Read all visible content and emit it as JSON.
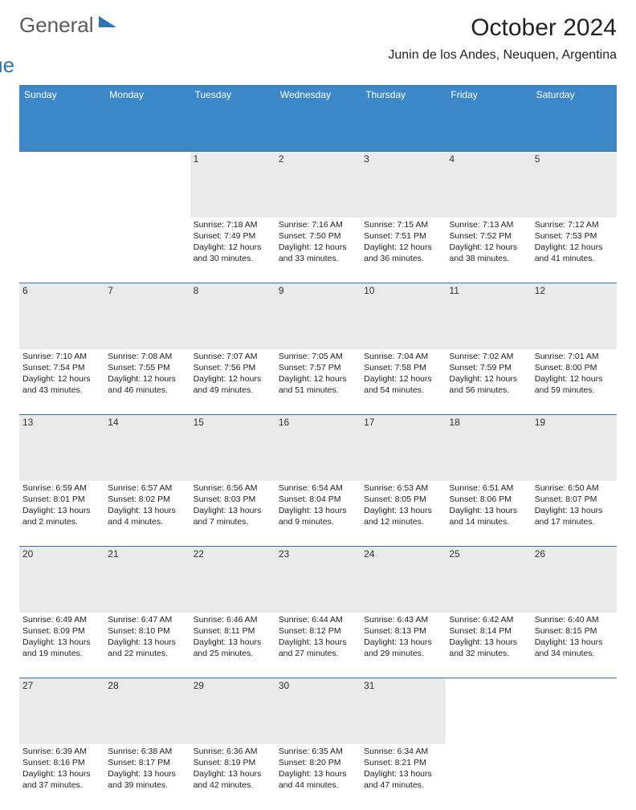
{
  "logo": {
    "general": "General",
    "blue": "Blue"
  },
  "title": "October 2024",
  "location": "Junin de los Andes, Neuquen, Argentina",
  "colors": {
    "accent": "#3c87c7",
    "border": "#2e74b5",
    "gray": "#eaeaea",
    "text": "#222222"
  },
  "day_headers": [
    "Sunday",
    "Monday",
    "Tuesday",
    "Wednesday",
    "Thursday",
    "Friday",
    "Saturday"
  ],
  "weeks": [
    [
      {
        "n": "",
        "sr": "",
        "ss": "",
        "dl": ""
      },
      {
        "n": "",
        "sr": "",
        "ss": "",
        "dl": ""
      },
      {
        "n": "1",
        "sr": "Sunrise: 7:18 AM",
        "ss": "Sunset: 7:49 PM",
        "dl": "Daylight: 12 hours and 30 minutes."
      },
      {
        "n": "2",
        "sr": "Sunrise: 7:16 AM",
        "ss": "Sunset: 7:50 PM",
        "dl": "Daylight: 12 hours and 33 minutes."
      },
      {
        "n": "3",
        "sr": "Sunrise: 7:15 AM",
        "ss": "Sunset: 7:51 PM",
        "dl": "Daylight: 12 hours and 36 minutes."
      },
      {
        "n": "4",
        "sr": "Sunrise: 7:13 AM",
        "ss": "Sunset: 7:52 PM",
        "dl": "Daylight: 12 hours and 38 minutes."
      },
      {
        "n": "5",
        "sr": "Sunrise: 7:12 AM",
        "ss": "Sunset: 7:53 PM",
        "dl": "Daylight: 12 hours and 41 minutes."
      }
    ],
    [
      {
        "n": "6",
        "sr": "Sunrise: 7:10 AM",
        "ss": "Sunset: 7:54 PM",
        "dl": "Daylight: 12 hours and 43 minutes."
      },
      {
        "n": "7",
        "sr": "Sunrise: 7:08 AM",
        "ss": "Sunset: 7:55 PM",
        "dl": "Daylight: 12 hours and 46 minutes."
      },
      {
        "n": "8",
        "sr": "Sunrise: 7:07 AM",
        "ss": "Sunset: 7:56 PM",
        "dl": "Daylight: 12 hours and 49 minutes."
      },
      {
        "n": "9",
        "sr": "Sunrise: 7:05 AM",
        "ss": "Sunset: 7:57 PM",
        "dl": "Daylight: 12 hours and 51 minutes."
      },
      {
        "n": "10",
        "sr": "Sunrise: 7:04 AM",
        "ss": "Sunset: 7:58 PM",
        "dl": "Daylight: 12 hours and 54 minutes."
      },
      {
        "n": "11",
        "sr": "Sunrise: 7:02 AM",
        "ss": "Sunset: 7:59 PM",
        "dl": "Daylight: 12 hours and 56 minutes."
      },
      {
        "n": "12",
        "sr": "Sunrise: 7:01 AM",
        "ss": "Sunset: 8:00 PM",
        "dl": "Daylight: 12 hours and 59 minutes."
      }
    ],
    [
      {
        "n": "13",
        "sr": "Sunrise: 6:59 AM",
        "ss": "Sunset: 8:01 PM",
        "dl": "Daylight: 13 hours and 2 minutes."
      },
      {
        "n": "14",
        "sr": "Sunrise: 6:57 AM",
        "ss": "Sunset: 8:02 PM",
        "dl": "Daylight: 13 hours and 4 minutes."
      },
      {
        "n": "15",
        "sr": "Sunrise: 6:56 AM",
        "ss": "Sunset: 8:03 PM",
        "dl": "Daylight: 13 hours and 7 minutes."
      },
      {
        "n": "16",
        "sr": "Sunrise: 6:54 AM",
        "ss": "Sunset: 8:04 PM",
        "dl": "Daylight: 13 hours and 9 minutes."
      },
      {
        "n": "17",
        "sr": "Sunrise: 6:53 AM",
        "ss": "Sunset: 8:05 PM",
        "dl": "Daylight: 13 hours and 12 minutes."
      },
      {
        "n": "18",
        "sr": "Sunrise: 6:51 AM",
        "ss": "Sunset: 8:06 PM",
        "dl": "Daylight: 13 hours and 14 minutes."
      },
      {
        "n": "19",
        "sr": "Sunrise: 6:50 AM",
        "ss": "Sunset: 8:07 PM",
        "dl": "Daylight: 13 hours and 17 minutes."
      }
    ],
    [
      {
        "n": "20",
        "sr": "Sunrise: 6:49 AM",
        "ss": "Sunset: 8:09 PM",
        "dl": "Daylight: 13 hours and 19 minutes."
      },
      {
        "n": "21",
        "sr": "Sunrise: 6:47 AM",
        "ss": "Sunset: 8:10 PM",
        "dl": "Daylight: 13 hours and 22 minutes."
      },
      {
        "n": "22",
        "sr": "Sunrise: 6:46 AM",
        "ss": "Sunset: 8:11 PM",
        "dl": "Daylight: 13 hours and 25 minutes."
      },
      {
        "n": "23",
        "sr": "Sunrise: 6:44 AM",
        "ss": "Sunset: 8:12 PM",
        "dl": "Daylight: 13 hours and 27 minutes."
      },
      {
        "n": "24",
        "sr": "Sunrise: 6:43 AM",
        "ss": "Sunset: 8:13 PM",
        "dl": "Daylight: 13 hours and 29 minutes."
      },
      {
        "n": "25",
        "sr": "Sunrise: 6:42 AM",
        "ss": "Sunset: 8:14 PM",
        "dl": "Daylight: 13 hours and 32 minutes."
      },
      {
        "n": "26",
        "sr": "Sunrise: 6:40 AM",
        "ss": "Sunset: 8:15 PM",
        "dl": "Daylight: 13 hours and 34 minutes."
      }
    ],
    [
      {
        "n": "27",
        "sr": "Sunrise: 6:39 AM",
        "ss": "Sunset: 8:16 PM",
        "dl": "Daylight: 13 hours and 37 minutes."
      },
      {
        "n": "28",
        "sr": "Sunrise: 6:38 AM",
        "ss": "Sunset: 8:17 PM",
        "dl": "Daylight: 13 hours and 39 minutes."
      },
      {
        "n": "29",
        "sr": "Sunrise: 6:36 AM",
        "ss": "Sunset: 8:19 PM",
        "dl": "Daylight: 13 hours and 42 minutes."
      },
      {
        "n": "30",
        "sr": "Sunrise: 6:35 AM",
        "ss": "Sunset: 8:20 PM",
        "dl": "Daylight: 13 hours and 44 minutes."
      },
      {
        "n": "31",
        "sr": "Sunrise: 6:34 AM",
        "ss": "Sunset: 8:21 PM",
        "dl": "Daylight: 13 hours and 47 minutes."
      },
      {
        "n": "",
        "sr": "",
        "ss": "",
        "dl": ""
      },
      {
        "n": "",
        "sr": "",
        "ss": "",
        "dl": ""
      }
    ]
  ]
}
